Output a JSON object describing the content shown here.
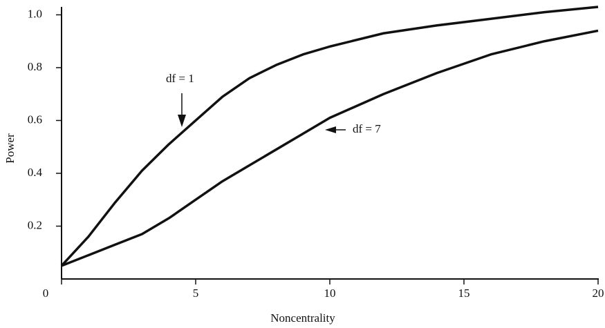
{
  "chart_data": {
    "type": "line",
    "x_label": "Noncentrality",
    "y_label": "Power",
    "x": [
      0,
      1,
      2,
      3,
      4,
      5,
      6,
      7,
      8,
      9,
      10,
      12,
      14,
      16,
      18,
      20
    ],
    "series": [
      {
        "name": "df = 1",
        "color": "#111111",
        "values": [
          0.05,
          0.16,
          0.29,
          0.41,
          0.51,
          0.6,
          0.69,
          0.76,
          0.81,
          0.85,
          0.88,
          0.93,
          0.96,
          0.985,
          1.01,
          1.03
        ]
      },
      {
        "name": "df = 7",
        "color": "#111111",
        "values": [
          0.05,
          0.09,
          0.13,
          0.17,
          0.23,
          0.3,
          0.37,
          0.43,
          0.49,
          0.55,
          0.61,
          0.7,
          0.78,
          0.85,
          0.9,
          0.94
        ]
      }
    ],
    "xlim": [
      0,
      20
    ],
    "xticks": [
      0,
      5,
      10,
      15,
      20
    ],
    "ylim": [
      0,
      1.03
    ],
    "yticks": [
      0.2,
      0.4,
      0.6,
      0.8,
      {
        "value": 1,
        "label": "1.0"
      }
    ],
    "grid": false
  }
}
